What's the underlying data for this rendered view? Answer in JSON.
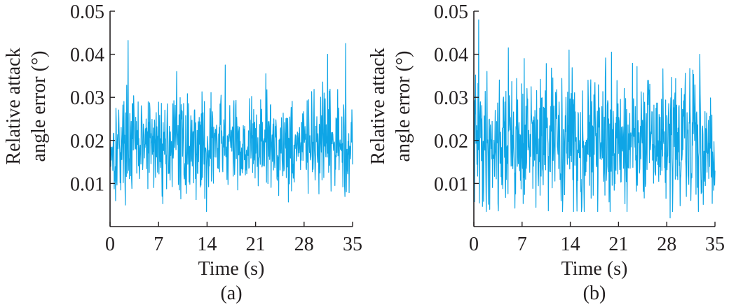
{
  "colors": {
    "series": "#0ea5e6",
    "axis": "#231f20"
  },
  "chart_data": [
    {
      "type": "line",
      "panel_label": "(a)",
      "xlabel": "Time (s)",
      "ylabel_line1": "Relative attack",
      "ylabel_line2": "angle error (°)",
      "xlim": [
        0,
        35
      ],
      "ylim": [
        0,
        0.05
      ],
      "xticks": [
        0,
        7,
        14,
        21,
        28,
        35
      ],
      "xtick_labels": [
        "0",
        "7",
        "14",
        "21",
        "28",
        "35"
      ],
      "yticks": [
        0.01,
        0.02,
        0.03,
        0.04,
        0.05
      ],
      "ytick_labels": [
        "0.01",
        "0.02",
        "0.03",
        "0.04",
        "0.05"
      ],
      "grid": false,
      "noise": {
        "mean": 0.019,
        "spread": 0.0055,
        "min": 0.0035,
        "max": 0.0432,
        "samples": 700,
        "seed": 17
      },
      "spikes": [
        {
          "x": 2.6,
          "y": 0.0432
        },
        {
          "x": 13.9,
          "y": 0.0035
        },
        {
          "x": 16.6,
          "y": 0.0375
        },
        {
          "x": 0.8,
          "y": 0.006
        },
        {
          "x": 34.0,
          "y": 0.0425
        },
        {
          "x": 31.4,
          "y": 0.04
        },
        {
          "x": 9.6,
          "y": 0.036
        },
        {
          "x": 22.5,
          "y": 0.0355
        }
      ]
    },
    {
      "type": "line",
      "panel_label": "(b)",
      "xlabel": "Time (s)",
      "ylabel_line1": "Relative attack",
      "ylabel_line2": "angle error (°)",
      "xlim": [
        0,
        35
      ],
      "ylim": [
        0,
        0.05
      ],
      "xticks": [
        0,
        7,
        14,
        21,
        28,
        35
      ],
      "xtick_labels": [
        "0",
        "7",
        "14",
        "21",
        "28",
        "35"
      ],
      "yticks": [
        0.01,
        0.02,
        0.03,
        0.04,
        0.05
      ],
      "ytick_labels": [
        "0.01",
        "0.02",
        "0.03",
        "0.04",
        "0.05"
      ],
      "grid": false,
      "noise": {
        "mean": 0.0195,
        "spread": 0.0075,
        "min": 0.002,
        "max": 0.048,
        "samples": 700,
        "seed": 41
      },
      "spikes": [
        {
          "x": 0.7,
          "y": 0.048
        },
        {
          "x": 5.0,
          "y": 0.0415
        },
        {
          "x": 13.8,
          "y": 0.041
        },
        {
          "x": 20.0,
          "y": 0.0405
        },
        {
          "x": 28.5,
          "y": 0.002
        },
        {
          "x": 32.8,
          "y": 0.04
        },
        {
          "x": 2.3,
          "y": 0.004
        },
        {
          "x": 7.3,
          "y": 0.039
        },
        {
          "x": 16.0,
          "y": 0.0035
        }
      ]
    }
  ]
}
